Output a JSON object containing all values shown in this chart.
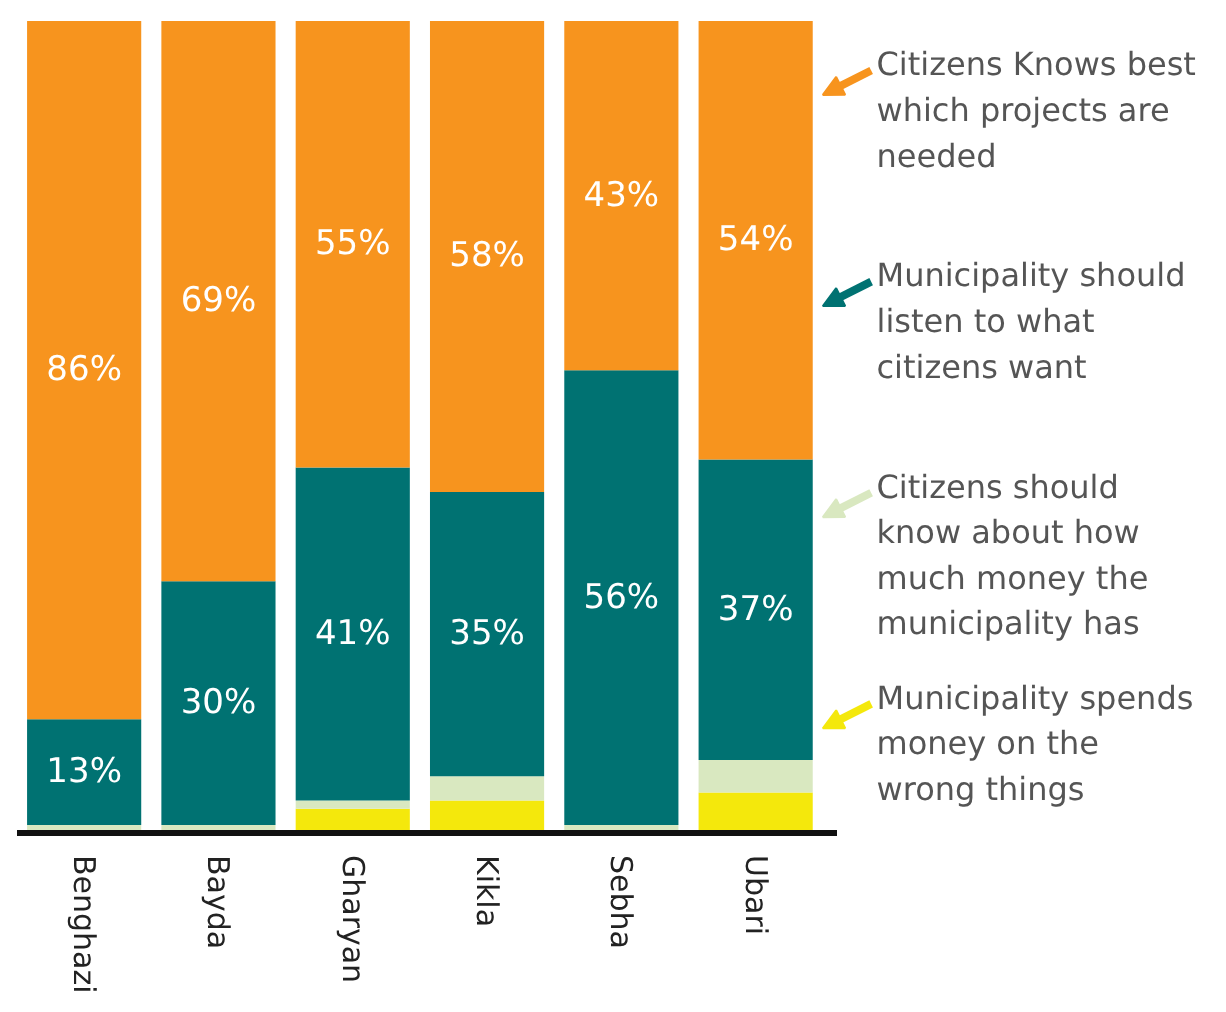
{
  "chart_data": {
    "type": "bar",
    "stacked": true,
    "categories": [
      "Benghazi",
      "Bayda",
      "Gharyan",
      "Kikla",
      "Sebha",
      "Ubari"
    ],
    "series": [
      {
        "name": "Municipality spends\nmoney on the\nwrong things",
        "color": "#f4e80c",
        "values": [
          0,
          0,
          3,
          4,
          0,
          5
        ]
      },
      {
        "name": "Citizens should\nknow about how\nmuch money the\nmunicipality has",
        "color": "#d9e8c0",
        "values": [
          1,
          1,
          1,
          3,
          1,
          4
        ]
      },
      {
        "name": "Municipality should\nlisten to what\ncitizens want",
        "color": "#007272",
        "values": [
          13,
          30,
          41,
          35,
          56,
          37
        ],
        "value_labels": [
          "13%",
          "30%",
          "41%",
          "35%",
          "56%",
          "37%"
        ]
      },
      {
        "name": "Citizens Knows best\nwhich projects are\nneeded",
        "color": "#f7941e",
        "values": [
          86,
          69,
          55,
          58,
          43,
          54
        ],
        "value_labels": [
          "86%",
          "69%",
          "55%",
          "58%",
          "43%",
          "54%"
        ]
      }
    ],
    "legend": "right",
    "grid": false
  }
}
